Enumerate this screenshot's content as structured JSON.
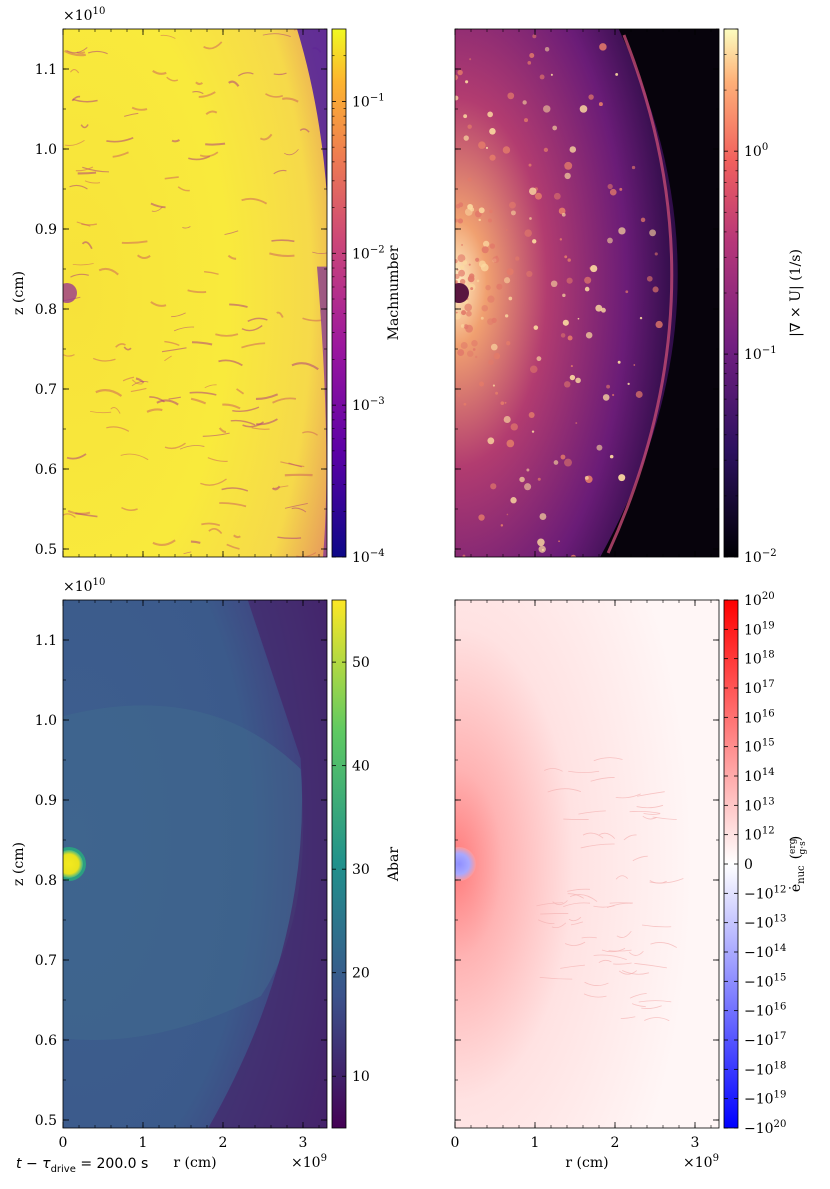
{
  "footer": {
    "time_label": "t − τ",
    "time_sub": "drive",
    "time_value": " =  200.0 s"
  },
  "chart_data": [
    {
      "type": "heatmap",
      "panel": "top-left",
      "quantity": "Machnumber",
      "colorbar_label": "Machnumber",
      "colormap": "plasma",
      "scale": "log",
      "clim": [
        0.0001,
        0.3
      ],
      "colorbar_ticks": [
        {
          "value": 0.1,
          "label": "10",
          "exp": "−1"
        },
        {
          "value": 0.01,
          "label": "10",
          "exp": "−2"
        },
        {
          "value": 0.001,
          "label": "10",
          "exp": "−3"
        },
        {
          "value": 0.0001,
          "label": "10",
          "exp": "−4"
        }
      ],
      "ylabel": "z  (cm)",
      "y_offset_label": "×10",
      "y_offset_exp": "10",
      "xlim": [
        0,
        3300000000.0
      ],
      "ylim": [
        4900000000.0,
        11500000000.0
      ],
      "yticks": [
        "0.5",
        "0.6",
        "0.7",
        "0.8",
        "0.9",
        "1.0",
        "1.1"
      ],
      "dominant_color": "#f5e52a",
      "edge_color": "#2b0c8a"
    },
    {
      "type": "heatmap",
      "panel": "top-right",
      "quantity": "vorticity",
      "colorbar_label": "|∇ × U|  (1/s)",
      "colormap": "magma",
      "scale": "log",
      "clim": [
        0.01,
        4.0
      ],
      "colorbar_ticks": [
        {
          "value": 1,
          "label": "10",
          "exp": "0"
        },
        {
          "value": 0.1,
          "label": "10",
          "exp": "−1"
        },
        {
          "value": 0.01,
          "label": "10",
          "exp": "−2"
        }
      ],
      "xlim": [
        0,
        3300000000.0
      ],
      "ylim": [
        4900000000.0,
        11500000000.0
      ]
    },
    {
      "type": "heatmap",
      "panel": "bottom-left",
      "quantity": "Abar",
      "colorbar_label": "Abar",
      "colormap": "viridis",
      "scale": "linear",
      "clim": [
        5,
        56
      ],
      "colorbar_ticks": [
        {
          "value": 50,
          "label": "50"
        },
        {
          "value": 40,
          "label": "40"
        },
        {
          "value": 30,
          "label": "30"
        },
        {
          "value": 20,
          "label": "20"
        },
        {
          "value": 10,
          "label": "10"
        }
      ],
      "ylabel": "z  (cm)",
      "xlabel": "r  (cm)",
      "y_offset_label": "×10",
      "y_offset_exp": "10",
      "x_offset_label": "×10",
      "x_offset_exp": "9",
      "xlim": [
        0,
        3300000000.0
      ],
      "ylim": [
        4900000000.0,
        11500000000.0
      ],
      "xticks": [
        "0",
        "1",
        "2",
        "3"
      ],
      "yticks": [
        "0.5",
        "0.6",
        "0.7",
        "0.8",
        "0.9",
        "1.0",
        "1.1"
      ],
      "background_color": "#3b5a8c",
      "hotspot_color": "#f0e51f"
    },
    {
      "type": "heatmap",
      "panel": "bottom-right",
      "quantity": "enuc",
      "colorbar_label": "ė",
      "colorbar_label_sub": "nuc",
      "colorbar_unit_num": "erg",
      "colorbar_unit_den": "g·s",
      "colormap": "bwr",
      "scale": "symlog",
      "clim": [
        -1e+20,
        1e+20
      ],
      "colorbar_ticks": [
        {
          "value": 1e+20,
          "label": "10",
          "exp": "20"
        },
        {
          "value": 1e+19,
          "label": "10",
          "exp": "19"
        },
        {
          "value": 1e+18,
          "label": "10",
          "exp": "18"
        },
        {
          "value": 1e+17,
          "label": "10",
          "exp": "17"
        },
        {
          "value": 1e+16,
          "label": "10",
          "exp": "16"
        },
        {
          "value": 1000000000000000.0,
          "label": "10",
          "exp": "15"
        },
        {
          "value": 100000000000000.0,
          "label": "10",
          "exp": "14"
        },
        {
          "value": 10000000000000.0,
          "label": "10",
          "exp": "13"
        },
        {
          "value": 1000000000000.0,
          "label": "10",
          "exp": "12"
        },
        {
          "value": 0,
          "label": "0",
          "exp": ""
        },
        {
          "value": -1000000000000.0,
          "label": "−10",
          "exp": "12"
        },
        {
          "value": -10000000000000.0,
          "label": "−10",
          "exp": "13"
        },
        {
          "value": -100000000000000.0,
          "label": "−10",
          "exp": "14"
        },
        {
          "value": -1000000000000000.0,
          "label": "−10",
          "exp": "15"
        },
        {
          "value": -1e+16,
          "label": "−10",
          "exp": "16"
        },
        {
          "value": -1e+17,
          "label": "−10",
          "exp": "17"
        },
        {
          "value": -1e+18,
          "label": "−10",
          "exp": "18"
        },
        {
          "value": -1e+19,
          "label": "−10",
          "exp": "19"
        },
        {
          "value": -1e+20,
          "label": "−10",
          "exp": "20"
        }
      ],
      "xlabel": "r  (cm)",
      "x_offset_label": "×10",
      "x_offset_exp": "9",
      "xlim": [
        0,
        3300000000.0
      ],
      "ylim": [
        4900000000.0,
        11500000000.0
      ],
      "xticks": [
        "0",
        "1",
        "2",
        "3"
      ]
    }
  ]
}
